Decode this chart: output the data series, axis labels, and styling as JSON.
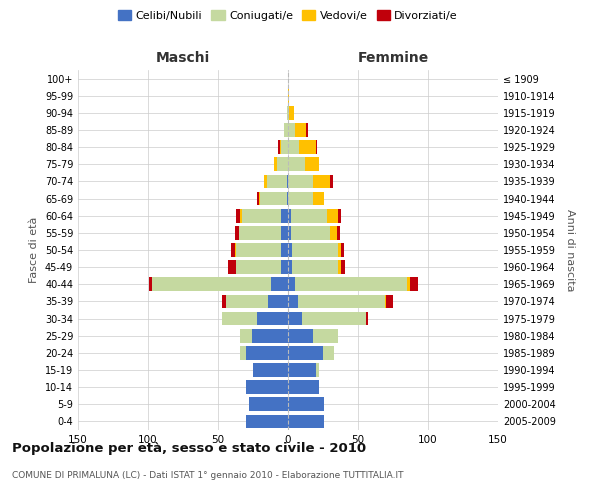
{
  "age_groups": [
    "0-4",
    "5-9",
    "10-14",
    "15-19",
    "20-24",
    "25-29",
    "30-34",
    "35-39",
    "40-44",
    "45-49",
    "50-54",
    "55-59",
    "60-64",
    "65-69",
    "70-74",
    "75-79",
    "80-84",
    "85-89",
    "90-94",
    "95-99",
    "100+"
  ],
  "birth_years": [
    "2005-2009",
    "2000-2004",
    "1995-1999",
    "1990-1994",
    "1985-1989",
    "1980-1984",
    "1975-1979",
    "1970-1974",
    "1965-1969",
    "1960-1964",
    "1955-1959",
    "1950-1954",
    "1945-1949",
    "1940-1944",
    "1935-1939",
    "1930-1934",
    "1925-1929",
    "1920-1924",
    "1915-1919",
    "1910-1914",
    "≤ 1909"
  ],
  "male": {
    "celibi": [
      30,
      28,
      30,
      25,
      30,
      26,
      22,
      14,
      12,
      5,
      5,
      5,
      5,
      1,
      1,
      0,
      0,
      0,
      0,
      0,
      0
    ],
    "coniugati": [
      0,
      0,
      0,
      0,
      4,
      8,
      25,
      30,
      85,
      32,
      32,
      30,
      28,
      19,
      14,
      8,
      5,
      3,
      1,
      0,
      0
    ],
    "vedovi": [
      0,
      0,
      0,
      0,
      0,
      0,
      0,
      0,
      0,
      0,
      1,
      0,
      1,
      1,
      2,
      2,
      1,
      0,
      0,
      0,
      0
    ],
    "divorziati": [
      0,
      0,
      0,
      0,
      0,
      0,
      0,
      3,
      2,
      6,
      3,
      3,
      3,
      1,
      0,
      0,
      1,
      0,
      0,
      0,
      0
    ]
  },
  "female": {
    "nubili": [
      26,
      26,
      22,
      20,
      25,
      18,
      10,
      7,
      5,
      3,
      3,
      2,
      2,
      0,
      0,
      0,
      0,
      0,
      0,
      0,
      0
    ],
    "coniugate": [
      0,
      0,
      0,
      2,
      8,
      18,
      46,
      62,
      80,
      33,
      33,
      28,
      26,
      18,
      18,
      12,
      8,
      5,
      1,
      0,
      0
    ],
    "vedove": [
      0,
      0,
      0,
      0,
      0,
      0,
      0,
      1,
      2,
      2,
      2,
      5,
      8,
      8,
      12,
      10,
      12,
      8,
      3,
      1,
      0
    ],
    "divorziate": [
      0,
      0,
      0,
      0,
      0,
      0,
      1,
      5,
      6,
      3,
      2,
      2,
      2,
      0,
      2,
      0,
      1,
      1,
      0,
      0,
      0
    ]
  },
  "colors": {
    "celibi": "#4472c4",
    "coniugati": "#c5d9a0",
    "vedovi": "#ffc000",
    "divorziati": "#c0000b"
  },
  "title": "Popolazione per età, sesso e stato civile - 2010",
  "subtitle": "COMUNE DI PRIMALUNA (LC) - Dati ISTAT 1° gennaio 2010 - Elaborazione TUTTITALIA.IT",
  "xlabel_left": "Maschi",
  "xlabel_right": "Femmine",
  "ylabel_left": "Fasce di età",
  "ylabel_right": "Anni di nascita",
  "xlim": 150,
  "legend_labels": [
    "Celibi/Nubili",
    "Coniugati/e",
    "Vedovi/e",
    "Divorziati/e"
  ],
  "background_color": "#ffffff",
  "grid_color": "#cccccc"
}
